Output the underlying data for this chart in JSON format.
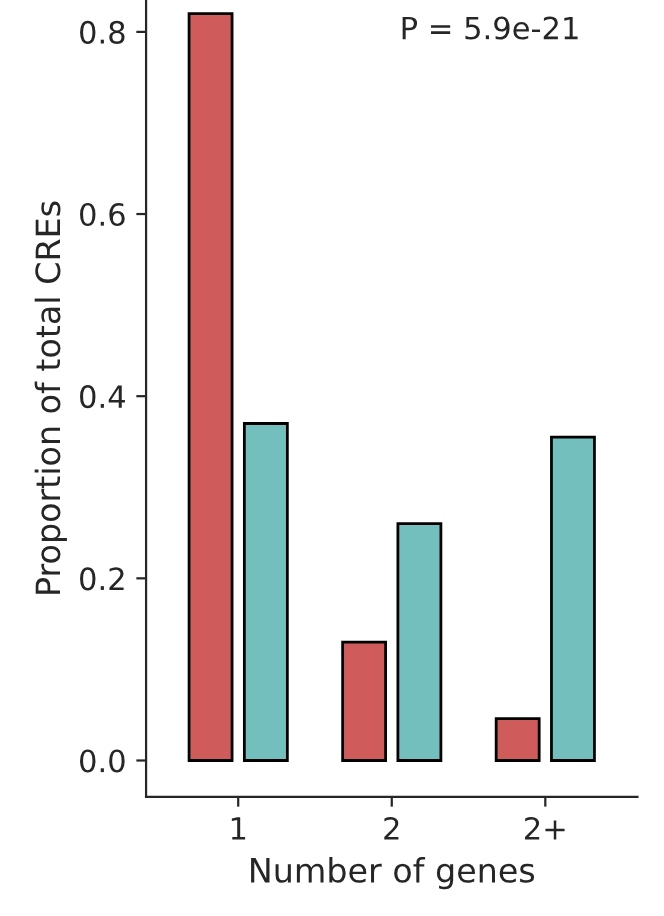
{
  "chart_data": {
    "type": "bar",
    "xlabel": "Number of genes",
    "ylabel": "Proportion of total CREs",
    "categories": [
      "1",
      "2",
      "2+"
    ],
    "series": [
      {
        "color": "#d05b5b",
        "values": [
          0.82,
          0.13,
          0.046
        ]
      },
      {
        "color": "#73bfbe",
        "values": [
          0.37,
          0.26,
          0.355
        ]
      }
    ],
    "ylim": [
      -0.04,
      0.835
    ],
    "yticks": [
      {
        "value": 0.0,
        "label": "0.0"
      },
      {
        "value": 0.2,
        "label": "0.2"
      },
      {
        "value": 0.4,
        "label": "0.4"
      },
      {
        "value": 0.6,
        "label": "0.6"
      },
      {
        "value": 0.8,
        "label": "0.8"
      }
    ],
    "grid": false,
    "legend": false,
    "annotations": [
      "P = 5.9e-21"
    ]
  }
}
